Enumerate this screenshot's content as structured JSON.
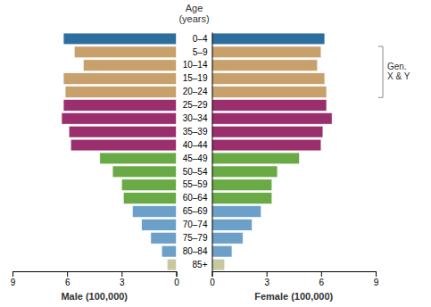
{
  "chart_data": [
    {
      "type": "bar",
      "orientation": "horizontal",
      "title": "Age\n(years)",
      "xlabel": "Male (100,000)",
      "categories": [
        "85+",
        "80–84",
        "75–79",
        "70–74",
        "65–69",
        "60–64",
        "55–59",
        "50–54",
        "45–49",
        "40–44",
        "35–39",
        "30–34",
        "25–29",
        "20–24",
        "15–19",
        "10–14",
        "5–9",
        "0–4"
      ],
      "values": [
        0.5,
        0.8,
        1.4,
        1.9,
        2.4,
        2.9,
        3.0,
        3.5,
        4.2,
        5.8,
        5.9,
        6.3,
        6.2,
        6.1,
        6.2,
        5.1,
        5.6,
        6.2
      ],
      "colors": [
        "#c8c8a0",
        "#6ca0c8",
        "#6ca0c8",
        "#6ca0c8",
        "#6ca0c8",
        "#6aaa46",
        "#6aaa46",
        "#6aaa46",
        "#6aaa46",
        "#9b2f6e",
        "#9b2f6e",
        "#9b2f6e",
        "#9b2f6e",
        "#c8a06c",
        "#c8a06c",
        "#c8a06c",
        "#c8a06c",
        "#2e6e9e"
      ],
      "xlim": [
        9,
        0
      ],
      "xticks": [
        0,
        3,
        6,
        9
      ],
      "tick_labels": "x"
    },
    {
      "type": "bar",
      "orientation": "horizontal",
      "xlabel": "Female (100,000)",
      "categories": [
        "85+",
        "80–84",
        "75–79",
        "70–74",
        "65–69",
        "60–64",
        "55–59",
        "50–54",
        "45–49",
        "40–44",
        "35–39",
        "30–34",
        "25–29",
        "20–24",
        "15–19",
        "10–14",
        "5–9",
        "0–4"
      ],
      "values": [
        0.7,
        1.1,
        1.7,
        2.2,
        2.7,
        3.3,
        3.3,
        3.6,
        4.8,
        6.0,
        6.1,
        6.6,
        6.3,
        6.3,
        6.2,
        5.8,
        6.0,
        6.2
      ],
      "colors": [
        "#c8c8a0",
        "#6ca0c8",
        "#6ca0c8",
        "#6ca0c8",
        "#6ca0c8",
        "#6aaa46",
        "#6aaa46",
        "#6aaa46",
        "#6aaa46",
        "#9b2f6e",
        "#9b2f6e",
        "#9b2f6e",
        "#9b2f6e",
        "#c8a06c",
        "#c8a06c",
        "#c8a06c",
        "#c8a06c",
        "#2e6e9e"
      ],
      "xlim": [
        0,
        9
      ],
      "xticks": [
        0,
        3,
        6,
        9
      ],
      "annotation": {
        "text": "Gen.\nX & Y",
        "from": "5–9",
        "to": "20–24"
      }
    }
  ]
}
